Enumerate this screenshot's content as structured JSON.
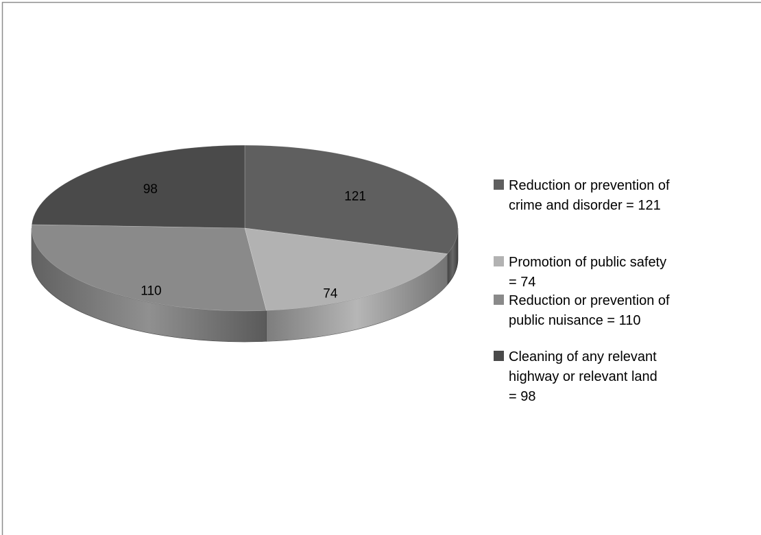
{
  "chart_data": {
    "type": "pie",
    "three_d": true,
    "start": "12 o'clock",
    "direction": "clockwise",
    "legend_position": "right",
    "slices": [
      {
        "label": "Reduction or prevention of crime and disorder = 121",
        "value": 121,
        "color": "#5f5f5f"
      },
      {
        "label": "Promotion of public safety = 74",
        "value": 74,
        "color": "#b2b2b2"
      },
      {
        "label": "Reduction or prevention of public nuisance = 110",
        "value": 110,
        "color": "#8a8a8a"
      },
      {
        "label": "Cleaning of any relevant highway or relevant land = 98",
        "value": 98,
        "color": "#4a4a4a"
      }
    ]
  }
}
